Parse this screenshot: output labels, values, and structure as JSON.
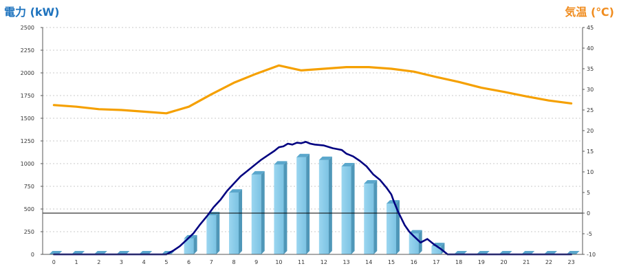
{
  "chart_data": {
    "type": "bar",
    "left_axis_title": "電力 (kW)",
    "right_axis_title": "気温 (℃)",
    "categories": [
      "0",
      "1",
      "2",
      "3",
      "4",
      "5",
      "6",
      "7",
      "8",
      "9",
      "10",
      "11",
      "12",
      "13",
      "14",
      "15",
      "16",
      "17",
      "18",
      "19",
      "20",
      "21",
      "22",
      "23"
    ],
    "left_axis": {
      "range": [
        0,
        2500
      ],
      "ticks": [
        "0",
        "250",
        "500",
        "750",
        "1000",
        "1250",
        "1500",
        "1750",
        "2000",
        "2250",
        "2500"
      ]
    },
    "right_axis": {
      "range": [
        -10,
        45
      ],
      "ticks": [
        "-10",
        "-5",
        "0",
        "5",
        "10",
        "15",
        "20",
        "25",
        "30",
        "35",
        "40",
        "45"
      ]
    },
    "grid": true,
    "series": [
      {
        "kind": "bar",
        "axis": "left",
        "color": "#87ceeb",
        "values": [
          0,
          0,
          0,
          0,
          0,
          0,
          175,
          430,
          680,
          880,
          990,
          1070,
          1040,
          970,
          780,
          560,
          230,
          90,
          0,
          0,
          0,
          0,
          0,
          0
        ]
      },
      {
        "kind": "line",
        "axis": "left",
        "color": "#000080",
        "x": [
          0,
          1,
          2,
          3,
          4,
          5,
          5.3,
          5.6,
          5.9,
          6.2,
          6.5,
          6.8,
          7.1,
          7.4,
          7.7,
          8.0,
          8.3,
          8.6,
          8.9,
          9.2,
          9.5,
          9.8,
          10.0,
          10.2,
          10.4,
          10.6,
          10.8,
          11.0,
          11.2,
          11.4,
          11.6,
          11.8,
          12.0,
          12.2,
          12.4,
          12.6,
          12.8,
          13.0,
          13.3,
          13.6,
          13.9,
          14.2,
          14.5,
          14.8,
          15.0,
          15.1,
          15.3,
          15.6,
          15.8,
          16.0,
          16.3,
          16.6,
          16.9,
          17.2,
          17.5,
          18,
          19,
          20,
          21,
          22,
          23
        ],
        "y": [
          0,
          0,
          0,
          0,
          0,
          0,
          40,
          90,
          160,
          230,
          330,
          420,
          520,
          600,
          700,
          780,
          860,
          920,
          980,
          1040,
          1090,
          1140,
          1180,
          1190,
          1220,
          1210,
          1230,
          1225,
          1240,
          1220,
          1210,
          1205,
          1200,
          1185,
          1170,
          1160,
          1150,
          1110,
          1080,
          1030,
          970,
          880,
          820,
          730,
          660,
          590,
          470,
          320,
          250,
          200,
          130,
          170,
          110,
          60,
          0,
          0,
          0,
          0,
          0,
          0,
          0
        ]
      },
      {
        "kind": "line",
        "axis": "right",
        "color": "#f5a000",
        "x": [
          0,
          1,
          2,
          3,
          4,
          5,
          6,
          7,
          8,
          9,
          10,
          11,
          12,
          13,
          14,
          15,
          16,
          17,
          18,
          19,
          20,
          21,
          22,
          23
        ],
        "y": [
          26.2,
          25.8,
          25.2,
          25,
          24.6,
          24.2,
          25.8,
          28.8,
          31.6,
          33.8,
          35.8,
          34.6,
          35,
          35.4,
          35.4,
          35,
          34.3,
          33,
          31.8,
          30.4,
          29.4,
          28.3,
          27.3,
          26.6
        ]
      }
    ],
    "zero_reference_line": {
      "axis": "right",
      "value": 0
    }
  }
}
